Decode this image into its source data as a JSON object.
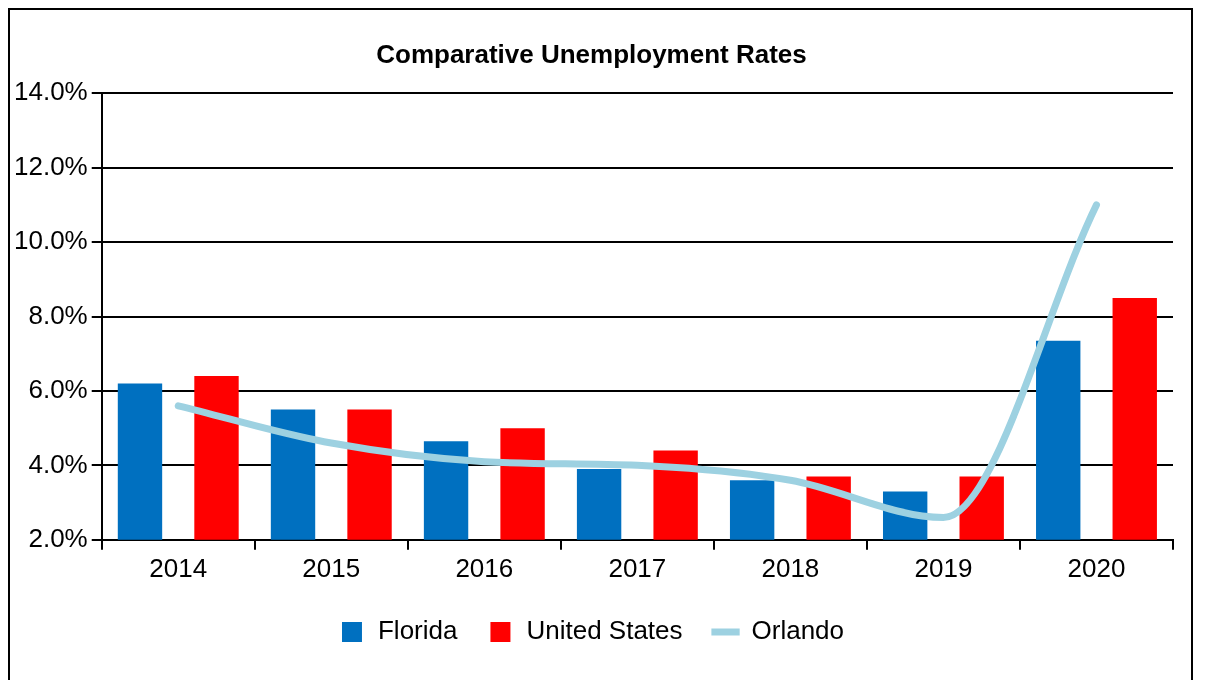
{
  "chart_data": {
    "type": "bar",
    "title": "Comparative Unemployment Rates",
    "categories": [
      "2014",
      "2015",
      "2016",
      "2017",
      "2018",
      "2019",
      "2020"
    ],
    "series": [
      {
        "name": "Florida",
        "color": "#0070c0",
        "values": [
          6.2,
          5.5,
          4.65,
          3.9,
          3.6,
          3.3,
          7.35
        ]
      },
      {
        "name": "United States",
        "color": "#ff0000",
        "values": [
          6.4,
          5.5,
          5.0,
          4.4,
          3.7,
          3.7,
          8.5
        ]
      },
      {
        "name": "Orlando",
        "type": "line",
        "color": "#9dd1e1",
        "values": [
          5.6,
          4.6,
          4.1,
          4.0,
          3.6,
          2.6,
          11.0
        ]
      }
    ],
    "ylim": [
      2,
      14
    ],
    "yticks": [
      {
        "value": 2,
        "label": "2.0%"
      },
      {
        "value": 4,
        "label": "4.0%"
      },
      {
        "value": 6,
        "label": "6.0%"
      },
      {
        "value": 8,
        "label": "8.0%"
      },
      {
        "value": 10,
        "label": "10.0%"
      },
      {
        "value": 12,
        "label": "12.0%"
      },
      {
        "value": 14,
        "label": "14.0%"
      }
    ],
    "grid": "y",
    "legend": "bottom",
    "marker": "none",
    "line_style": "solid"
  }
}
